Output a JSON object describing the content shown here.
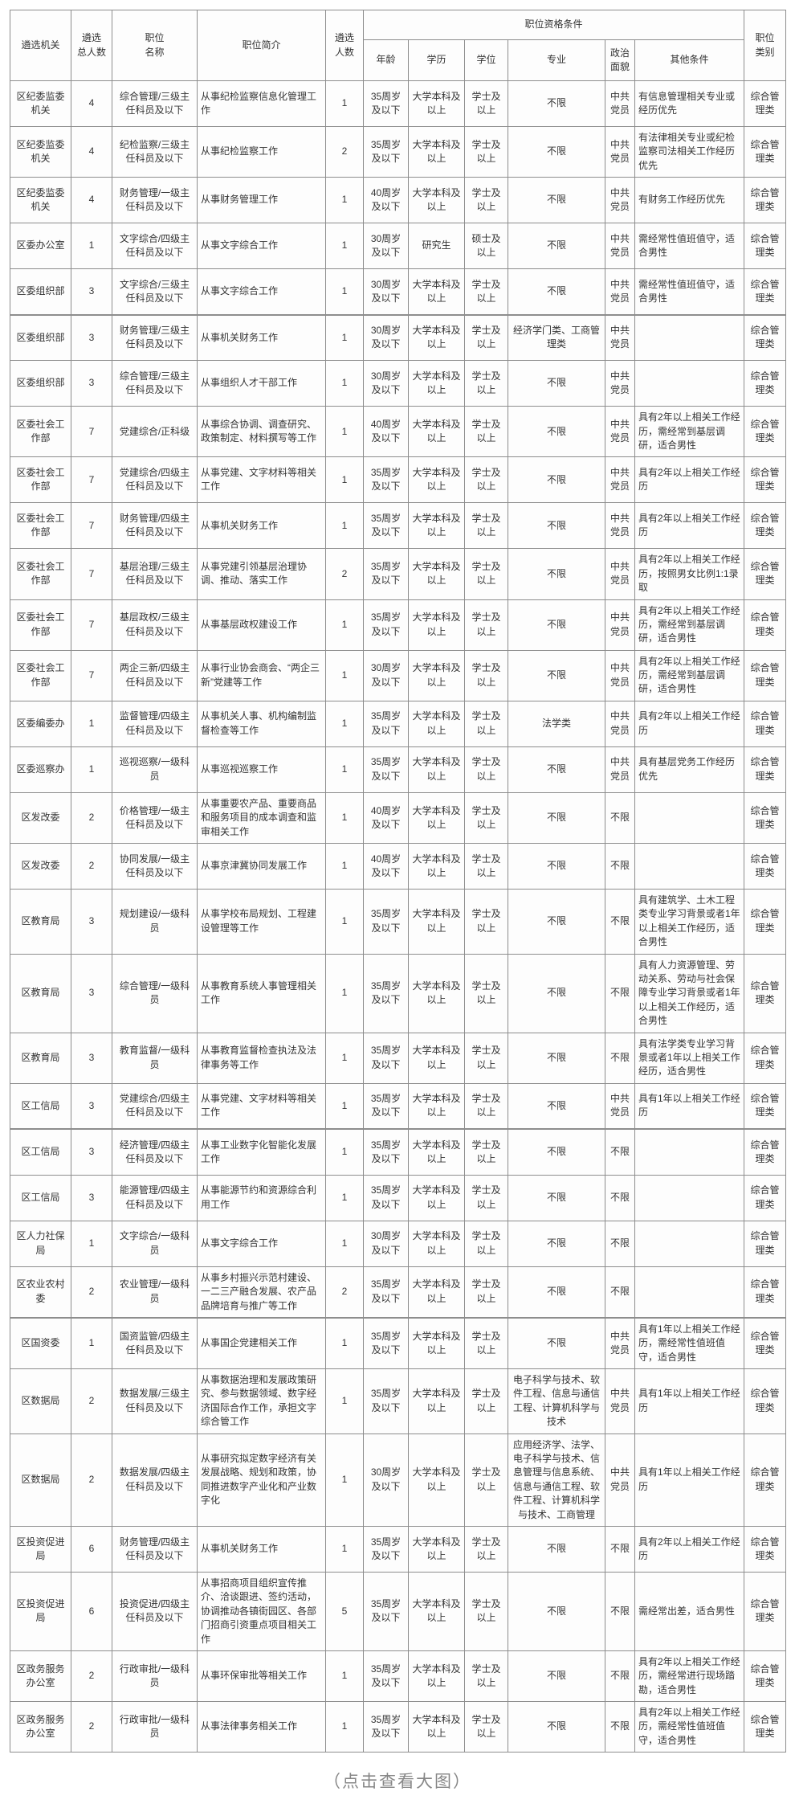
{
  "table": {
    "qual_group_label": "职位资格条件",
    "columns": {
      "agency": "遴选机关",
      "total": "遴选\n总人数",
      "title": "职位\n名称",
      "desc": "职位简介",
      "count": "遴选\n人数",
      "age": "年龄",
      "edu": "学历",
      "degree": "学位",
      "major": "专业",
      "political": "政治\n面貌",
      "other": "其他条件",
      "category": "职位\n类别"
    },
    "rows": [
      {
        "agency": "区纪委监委机关",
        "total": "4",
        "title": "综合管理/三级主任科员及以下",
        "desc": "从事纪检监察信息化管理工作",
        "count": "1",
        "age": "35周岁及以下",
        "edu": "大学本科及以上",
        "degree": "学士及以上",
        "major": "不限",
        "political": "中共党员",
        "other": "有信息管理相关专业或经历优先",
        "category": "综合管理类"
      },
      {
        "agency": "区纪委监委机关",
        "total": "4",
        "title": "纪检监察/三级主任科员及以下",
        "desc": "从事纪检监察工作",
        "count": "2",
        "age": "35周岁及以下",
        "edu": "大学本科及以上",
        "degree": "学士及以上",
        "major": "不限",
        "political": "中共党员",
        "other": "有法律相关专业或纪检监察司法相关工作经历优先",
        "category": "综合管理类"
      },
      {
        "agency": "区纪委监委机关",
        "total": "4",
        "title": "财务管理/一级主任科员及以下",
        "desc": "从事财务管理工作",
        "count": "1",
        "age": "40周岁及以下",
        "edu": "大学本科及以上",
        "degree": "学士及以上",
        "major": "不限",
        "political": "中共党员",
        "other": "有财务工作经历优先",
        "category": "综合管理类"
      },
      {
        "agency": "区委办公室",
        "total": "1",
        "title": "文字综合/四级主任科员及以下",
        "desc": "从事文字综合工作",
        "count": "1",
        "age": "30周岁及以下",
        "edu": "研究生",
        "degree": "硕士及以上",
        "major": "不限",
        "political": "中共党员",
        "other": "需经常性值班值守，适合男性",
        "category": "综合管理类"
      },
      {
        "agency": "区委组织部",
        "total": "3",
        "title": "文字综合/三级主任科员及以下",
        "desc": "从事文字综合工作",
        "count": "1",
        "age": "30周岁及以下",
        "edu": "大学本科及以上",
        "degree": "学士及以上",
        "major": "不限",
        "political": "中共党员",
        "other": "需经常性值班值守，适合男性",
        "category": "综合管理类"
      },
      {
        "agency": "区委组织部",
        "total": "3",
        "title": "财务管理/三级主任科员及以下",
        "desc": "从事机关财务工作",
        "count": "1",
        "age": "30周岁及以下",
        "edu": "大学本科及以上",
        "degree": "学士及以上",
        "major": "经济学门类、工商管理类",
        "political": "中共党员",
        "other": "",
        "category": "综合管理类"
      },
      {
        "agency": "区委组织部",
        "total": "3",
        "title": "综合管理/三级主任科员及以下",
        "desc": "从事组织人才干部工作",
        "count": "1",
        "age": "30周岁及以下",
        "edu": "大学本科及以上",
        "degree": "学士及以上",
        "major": "不限",
        "political": "中共党员",
        "other": "",
        "category": "综合管理类"
      },
      {
        "agency": "区委社会工作部",
        "total": "7",
        "title": "党建综合/正科级",
        "desc": "从事综合协调、调查研究、政策制定、材料撰写等工作",
        "count": "1",
        "age": "40周岁及以下",
        "edu": "大学本科及以上",
        "degree": "学士及以上",
        "major": "不限",
        "political": "中共党员",
        "other": "具有2年以上相关工作经历，需经常到基层调研，适合男性",
        "category": "综合管理类"
      },
      {
        "agency": "区委社会工作部",
        "total": "7",
        "title": "党建综合/四级主任科员及以下",
        "desc": "从事党建、文字材料等相关工作",
        "count": "1",
        "age": "35周岁及以下",
        "edu": "大学本科及以上",
        "degree": "学士及以上",
        "major": "不限",
        "political": "中共党员",
        "other": "具有2年以上相关工作经历",
        "category": "综合管理类"
      },
      {
        "agency": "区委社会工作部",
        "total": "7",
        "title": "财务管理/四级主任科员及以下",
        "desc": "从事机关财务工作",
        "count": "1",
        "age": "35周岁及以下",
        "edu": "大学本科及以上",
        "degree": "学士及以上",
        "major": "不限",
        "political": "中共党员",
        "other": "具有2年以上相关工作经历",
        "category": "综合管理类"
      },
      {
        "agency": "区委社会工作部",
        "total": "7",
        "title": "基层治理/三级主任科员及以下",
        "desc": "从事党建引领基层治理协调、推动、落实工作",
        "count": "2",
        "age": "35周岁及以下",
        "edu": "大学本科及以上",
        "degree": "学士及以上",
        "major": "不限",
        "political": "中共党员",
        "other": "具有2年以上相关工作经历，按照男女比例1:1录取",
        "category": "综合管理类"
      },
      {
        "agency": "区委社会工作部",
        "total": "7",
        "title": "基层政权/三级主任科员及以下",
        "desc": "从事基层政权建设工作",
        "count": "1",
        "age": "35周岁及以下",
        "edu": "大学本科及以上",
        "degree": "学士及以上",
        "major": "不限",
        "political": "中共党员",
        "other": "具有2年以上相关工作经历，需经常到基层调研，适合男性",
        "category": "综合管理类"
      },
      {
        "agency": "区委社会工作部",
        "total": "7",
        "title": "两企三新/四级主任科员及以下",
        "desc": "从事行业协会商会、“两企三新”党建等工作",
        "count": "1",
        "age": "30周岁及以下",
        "edu": "大学本科及以上",
        "degree": "学士及以上",
        "major": "不限",
        "political": "中共党员",
        "other": "具有2年以上相关工作经历，需经常到基层调研，适合男性",
        "category": "综合管理类"
      },
      {
        "agency": "区委编委办",
        "total": "1",
        "title": "监督管理/四级主任科员及以下",
        "desc": "从事机关人事、机构编制监督检查等工作",
        "count": "1",
        "age": "35周岁及以下",
        "edu": "大学本科及以上",
        "degree": "学士及以上",
        "major": "法学类",
        "political": "中共党员",
        "other": "具有2年以上相关工作经历",
        "category": "综合管理类"
      },
      {
        "agency": "区委巡察办",
        "total": "1",
        "title": "巡视巡察/一级科员",
        "desc": "从事巡视巡察工作",
        "count": "1",
        "age": "35周岁及以下",
        "edu": "大学本科及以上",
        "degree": "学士及以上",
        "major": "不限",
        "political": "中共党员",
        "other": "具有基层党务工作经历优先",
        "category": "综合管理类"
      },
      {
        "agency": "区发改委",
        "total": "2",
        "title": "价格管理/一级主任科员及以下",
        "desc": "从事重要农产品、重要商品和服务项目的成本调查和监审相关工作",
        "count": "1",
        "age": "40周岁及以下",
        "edu": "大学本科及以上",
        "degree": "学士及以上",
        "major": "不限",
        "political": "不限",
        "other": "",
        "category": "综合管理类"
      },
      {
        "agency": "区发改委",
        "total": "2",
        "title": "协同发展/一级主任科员及以下",
        "desc": "从事京津冀协同发展工作",
        "count": "1",
        "age": "40周岁及以下",
        "edu": "大学本科及以上",
        "degree": "学士及以上",
        "major": "不限",
        "political": "不限",
        "other": "",
        "category": "综合管理类"
      },
      {
        "agency": "区教育局",
        "total": "3",
        "title": "规划建设/一级科员",
        "desc": "从事学校布局规划、工程建设管理等工作",
        "count": "1",
        "age": "35周岁及以下",
        "edu": "大学本科及以上",
        "degree": "学士及以上",
        "major": "不限",
        "political": "不限",
        "other": "具有建筑学、土木工程类专业学习背景或者1年以上相关工作经历，适合男性",
        "category": "综合管理类"
      },
      {
        "agency": "区教育局",
        "total": "3",
        "title": "综合管理/一级科员",
        "desc": "从事教育系统人事管理相关工作",
        "count": "1",
        "age": "35周岁及以下",
        "edu": "大学本科及以上",
        "degree": "学士及以上",
        "major": "不限",
        "political": "不限",
        "other": "具有人力资源管理、劳动关系、劳动与社会保障专业学习背景或者1年以上相关工作经历，适合男性",
        "category": "综合管理类"
      },
      {
        "agency": "区教育局",
        "total": "3",
        "title": "教育监督/一级科员",
        "desc": "从事教育监督检查执法及法律事务等工作",
        "count": "1",
        "age": "35周岁及以下",
        "edu": "大学本科及以上",
        "degree": "学士及以上",
        "major": "不限",
        "political": "不限",
        "other": "具有法学类专业学习背景或者1年以上相关工作经历，适合男性",
        "category": "综合管理类"
      },
      {
        "agency": "区工信局",
        "total": "3",
        "title": "党建综合/四级主任科员及以下",
        "desc": "从事党建、文字材料等相关工作",
        "count": "1",
        "age": "35周岁及以下",
        "edu": "大学本科及以上",
        "degree": "学士及以上",
        "major": "不限",
        "political": "中共党员",
        "other": "具有1年以上相关工作经历",
        "category": "综合管理类"
      },
      {
        "agency": "区工信局",
        "total": "3",
        "title": "经济管理/四级主任科员及以下",
        "desc": "从事工业数字化智能化发展工作",
        "count": "1",
        "age": "35周岁及以下",
        "edu": "大学本科及以上",
        "degree": "学士及以上",
        "major": "不限",
        "political": "不限",
        "other": "",
        "category": "综合管理类"
      },
      {
        "agency": "区工信局",
        "total": "3",
        "title": "能源管理/四级主任科员及以下",
        "desc": "从事能源节约和资源综合利用工作",
        "count": "1",
        "age": "35周岁及以下",
        "edu": "大学本科及以上",
        "degree": "学士及以上",
        "major": "不限",
        "political": "不限",
        "other": "",
        "category": "综合管理类"
      },
      {
        "agency": "区人力社保局",
        "total": "1",
        "title": "文字综合/一级科员",
        "desc": "从事文字综合工作",
        "count": "1",
        "age": "30周岁及以下",
        "edu": "大学本科及以上",
        "degree": "学士及以上",
        "major": "不限",
        "political": "不限",
        "other": "",
        "category": "综合管理类"
      },
      {
        "agency": "区农业农村委",
        "total": "2",
        "title": "农业管理/一级科员",
        "desc": "从事乡村振兴示范村建设、一二三产融合发展、农产品品牌培育与推广等工作",
        "count": "2",
        "age": "35周岁及以下",
        "edu": "大学本科及以上",
        "degree": "学士及以上",
        "major": "不限",
        "political": "不限",
        "other": "",
        "category": "综合管理类"
      },
      {
        "agency": "区国资委",
        "total": "1",
        "title": "国资监管/四级主任科员及以下",
        "desc": "从事国企党建相关工作",
        "count": "1",
        "age": "35周岁及以下",
        "edu": "大学本科及以上",
        "degree": "学士及以上",
        "major": "不限",
        "political": "中共党员",
        "other": "具有1年以上相关工作经历，需经常性值班值守，适合男性",
        "category": "综合管理类"
      },
      {
        "agency": "区数据局",
        "total": "2",
        "title": "数据发展/三级主任科员及以下",
        "desc": "从事数据治理和发展政策研究、参与数据领域、数字经济国际合作工作，承担文字综合管工作",
        "count": "1",
        "age": "35周岁及以下",
        "edu": "大学本科及以上",
        "degree": "学士及以上",
        "major": "电子科学与技术、软件工程、信息与通信工程、计算机科学与技术",
        "political": "中共党员",
        "other": "具有1年以上相关工作经历",
        "category": "综合管理类"
      },
      {
        "agency": "区数据局",
        "total": "2",
        "title": "数据发展/四级主任科员及以下",
        "desc": "从事研究拟定数字经济有关发展战略、规划和政策，协同推进数字产业化和产业数字化",
        "count": "1",
        "age": "30周岁及以下",
        "edu": "大学本科及以上",
        "degree": "学士及以上",
        "major": "应用经济学、法学、电子科学与技术、信息管理与信息系统、信息与通信工程、软件工程、计算机科学与技术、工商管理",
        "political": "中共党员",
        "other": "具有1年以上相关工作经历",
        "category": "综合管理类"
      },
      {
        "agency": "区投资促进局",
        "total": "6",
        "title": "财务管理/四级主任科员及以下",
        "desc": "从事机关财务工作",
        "count": "1",
        "age": "35周岁及以下",
        "edu": "大学本科及以上",
        "degree": "学士及以上",
        "major": "不限",
        "political": "不限",
        "other": "具有2年以上相关工作经历",
        "category": "综合管理类"
      },
      {
        "agency": "区投资促进局",
        "total": "6",
        "title": "投资促进/四级主任科员及以下",
        "desc": "从事招商项目组织宣传推介、洽谈跟进、签约活动，协调推动各镇街园区、各部门招商引资重点项目相关工作",
        "count": "5",
        "age": "35周岁及以下",
        "edu": "大学本科及以上",
        "degree": "学士及以上",
        "major": "不限",
        "political": "不限",
        "other": "需经常出差，适合男性",
        "category": "综合管理类"
      },
      {
        "agency": "区政务服务办公室",
        "total": "2",
        "title": "行政审批/一级科员",
        "desc": "从事环保审批等相关工作",
        "count": "1",
        "age": "35周岁及以下",
        "edu": "大学本科及以上",
        "degree": "学士及以上",
        "major": "不限",
        "political": "不限",
        "other": "具有2年以上相关工作经历，需经常进行现场踏勘，适合男性",
        "category": "综合管理类"
      },
      {
        "agency": "区政务服务办公室",
        "total": "2",
        "title": "行政审批/一级科员",
        "desc": "从事法律事务相关工作",
        "count": "1",
        "age": "35周岁及以下",
        "edu": "大学本科及以上",
        "degree": "学士及以上",
        "major": "不限",
        "political": "不限",
        "other": "具有2年以上相关工作经历，需经常性值班值守，适合男性",
        "category": "综合管理类"
      }
    ]
  },
  "footer": {
    "caption": "（点击查看大图）"
  }
}
